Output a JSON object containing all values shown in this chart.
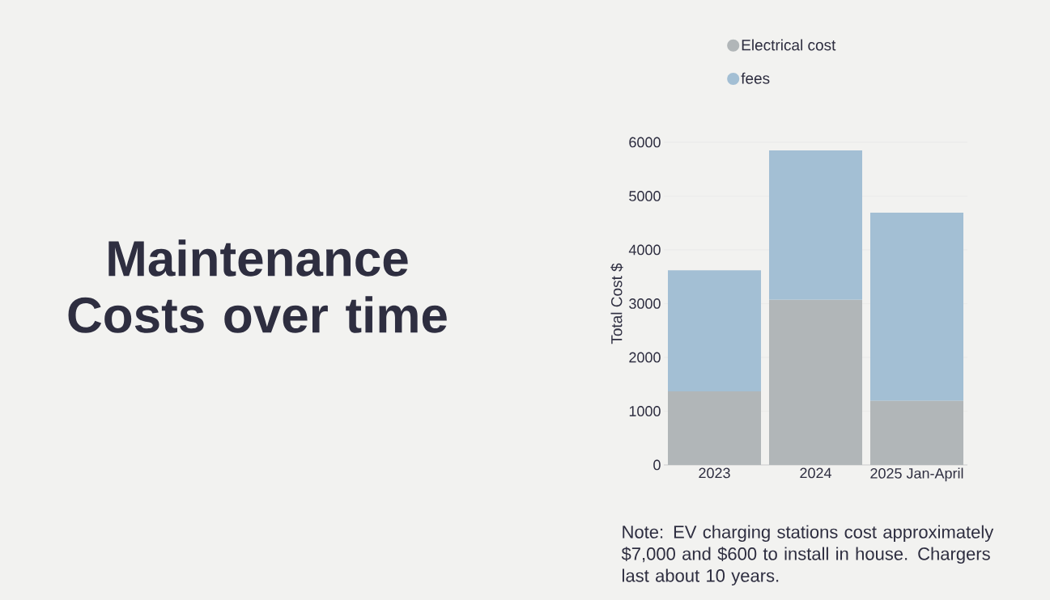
{
  "chart_data": {
    "type": "bar",
    "title": "Maintenance Costs over time",
    "ylabel": "Total Cost $",
    "categories": [
      "2023",
      "2024",
      "2025 Jan-April"
    ],
    "series": [
      {
        "name": "Electrical cost",
        "color": "#b1b6b8",
        "values": [
          1370,
          3070,
          1190
        ]
      },
      {
        "name": "fees",
        "color": "#a3bfd4",
        "values": [
          2250,
          2780,
          3500
        ]
      }
    ],
    "stacked": true,
    "ylim": [
      0,
      6000
    ],
    "yticks": [
      0,
      1000,
      2000,
      3000,
      4000,
      5000,
      6000
    ],
    "grid": "y",
    "legend": "top",
    "annotations": [
      "Note: EV charging stations cost approximately $7,000 and $600 to install in house. Chargers last about 10 years."
    ]
  }
}
